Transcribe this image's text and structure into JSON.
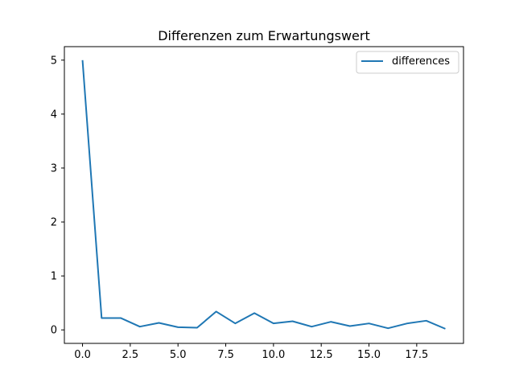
{
  "chart_data": {
    "type": "line",
    "title": "Differenzen zum Erwartungswert",
    "xlabel": "",
    "ylabel": "",
    "xlim": [
      -0.95,
      19.95
    ],
    "ylim": [
      -0.25,
      5.25
    ],
    "xticks": [
      0.0,
      2.5,
      5.0,
      7.5,
      10.0,
      12.5,
      15.0,
      17.5
    ],
    "xtick_labels": [
      "0.0",
      "2.5",
      "5.0",
      "7.5",
      "10.0",
      "12.5",
      "15.0",
      "17.5"
    ],
    "yticks": [
      0,
      1,
      2,
      3,
      4,
      5
    ],
    "ytick_labels": [
      "0",
      "1",
      "2",
      "3",
      "4",
      "5"
    ],
    "grid": false,
    "legend_position": "top-right",
    "series": [
      {
        "name": "differences",
        "color": "#1f77b4",
        "x": [
          0,
          1,
          2,
          3,
          4,
          5,
          6,
          7,
          8,
          9,
          10,
          11,
          12,
          13,
          14,
          15,
          16,
          17,
          18,
          19
        ],
        "y": [
          5.0,
          0.22,
          0.22,
          0.06,
          0.13,
          0.05,
          0.04,
          0.34,
          0.12,
          0.31,
          0.12,
          0.16,
          0.06,
          0.15,
          0.07,
          0.12,
          0.03,
          0.12,
          0.17,
          0.02
        ]
      }
    ]
  }
}
